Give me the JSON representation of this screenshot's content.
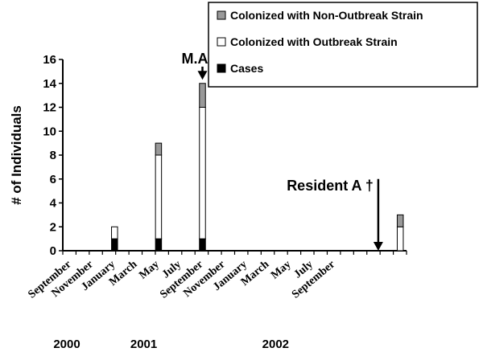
{
  "chart_data": {
    "type": "bar",
    "stacked": true,
    "ylabel": "# of Individuals",
    "ylim": [
      0,
      16
    ],
    "yticks": [
      0,
      2,
      4,
      6,
      8,
      10,
      12,
      14,
      16
    ],
    "x_tick_labels": [
      "September",
      "November",
      "January",
      "March",
      "May",
      "July",
      "September",
      "November",
      "January",
      "March",
      "May",
      "July",
      "September"
    ],
    "year_labels": [
      {
        "text": "2000",
        "month_index": 0
      },
      {
        "text": "2001",
        "month_index": 7
      },
      {
        "text": "2002",
        "month_index": 19
      }
    ],
    "months": 26,
    "series": [
      {
        "name": "Cases",
        "color": "#000000"
      },
      {
        "name": "Colonized with Outbreak Strain",
        "color": "#ffffff"
      },
      {
        "name": "Colonized with Non-Outbreak Strain",
        "color": "#999999"
      }
    ],
    "bars": [
      {
        "month_index": 2,
        "values": [
          1,
          1,
          0
        ]
      },
      {
        "month_index": 6,
        "values": [
          1,
          7,
          1
        ]
      },
      {
        "month_index": 10,
        "values": [
          1,
          11,
          2
        ]
      },
      {
        "month_index": 28,
        "values": [
          0,
          2,
          1
        ]
      }
    ],
    "annotations": [
      {
        "text": "M.A.T.",
        "month_index": 10,
        "arrow_top": 14.3,
        "arrow_bottom": 15.4
      },
      {
        "text": "Resident A †",
        "month_index": 26,
        "arrow_top": 0,
        "arrow_bottom": 6
      }
    ],
    "legend": "top-right",
    "grid": false
  }
}
